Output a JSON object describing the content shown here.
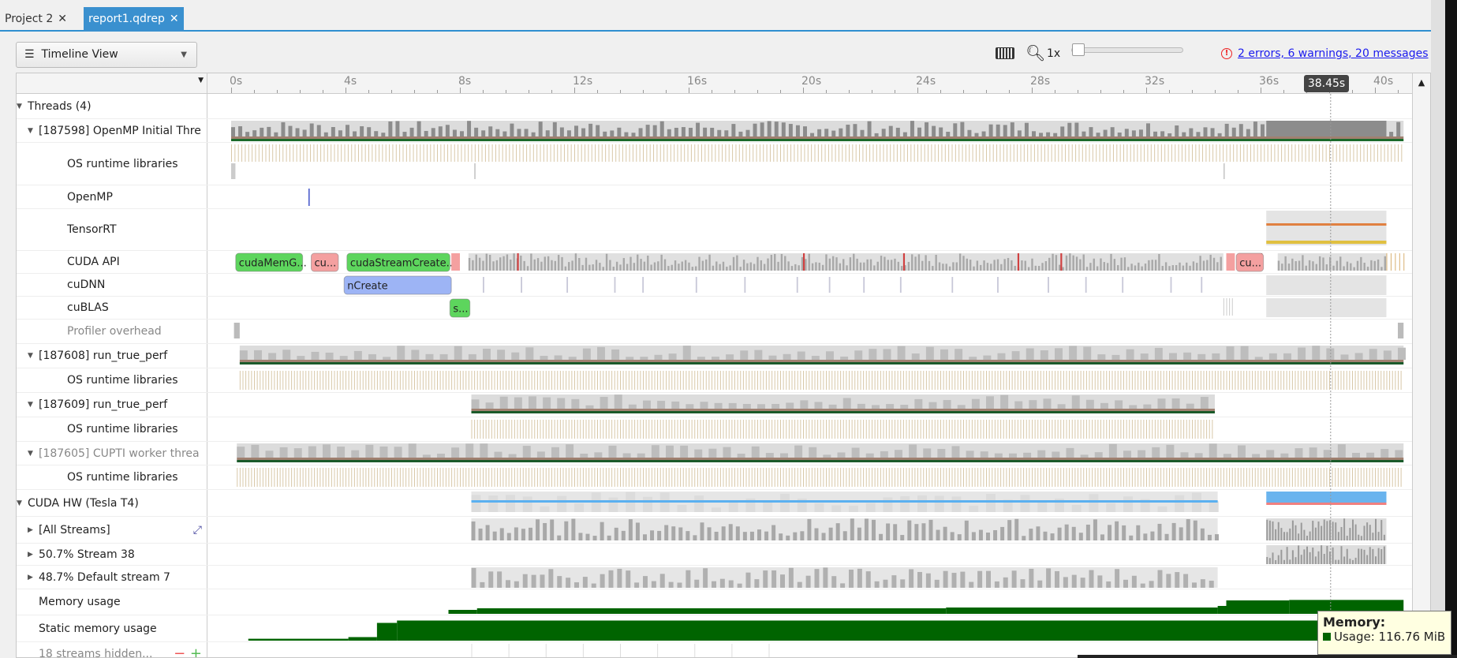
{
  "tabs": [
    {
      "label": "Project 2",
      "active": false
    },
    {
      "label": "report1.qdrep",
      "active": true
    }
  ],
  "toolbar": {
    "view_label": "Timeline View",
    "zoom_level": "1x",
    "zoom_fraction": 0.0,
    "messages_link": "2 errors, 6 warnings, 20 messages",
    "error_color": "#e22222"
  },
  "ruler": {
    "ticks": [
      "0s",
      "4s",
      "8s",
      "12s",
      "16s",
      "20s",
      "24s",
      "28s",
      "32s",
      "36s",
      "40s"
    ],
    "cursor_time": "38.45s"
  },
  "rows": [
    {
      "label": "Threads (4)",
      "expander": "down"
    },
    {
      "label": "[187598] OpenMP Initial Thre",
      "expander": "down"
    },
    {
      "label": "OS runtime libraries"
    },
    {
      "label": "OpenMP"
    },
    {
      "label": "TensorRT"
    },
    {
      "label": "CUDA API"
    },
    {
      "label": "cuDNN"
    },
    {
      "label": "cuBLAS"
    },
    {
      "label": "Profiler overhead",
      "dim": true
    },
    {
      "label": "[187608] run_true_perf",
      "expander": "down"
    },
    {
      "label": "OS runtime libraries"
    },
    {
      "label": "[187609] run_true_perf",
      "expander": "down"
    },
    {
      "label": "OS runtime libraries"
    },
    {
      "label": "[187605] CUPTI worker threa",
      "expander": "down",
      "dim": true
    },
    {
      "label": "OS runtime libraries"
    },
    {
      "label": "CUDA HW (Tesla T4)",
      "expander": "down"
    },
    {
      "label": "[All Streams]",
      "expander": "right"
    },
    {
      "label": "50.7% Stream 38",
      "expander": "right"
    },
    {
      "label": "48.7% Default stream 7",
      "expander": "right"
    },
    {
      "label": "Memory usage"
    },
    {
      "label": "Static memory usage"
    },
    {
      "label": "18 streams hidden...",
      "dim": true
    }
  ],
  "cuda_api_ranges": [
    {
      "label": "cudaMemG...",
      "color": "#5dd55d"
    },
    {
      "label": "cu...",
      "color": "#f4a0a0"
    },
    {
      "label": "cudaStreamCreate...",
      "color": "#5dd55d"
    },
    {
      "label": "cu...",
      "color": "#f4a0a0"
    }
  ],
  "cudnn_ranges": [
    {
      "label": "nCreate",
      "color": "#9db4f5"
    }
  ],
  "cublas_ranges": [
    {
      "label": "s...",
      "color": "#5dd55d"
    }
  ],
  "tooltip": {
    "title": "Memory:",
    "line": "Usage: 116.76 MiB",
    "color": "#006400"
  }
}
